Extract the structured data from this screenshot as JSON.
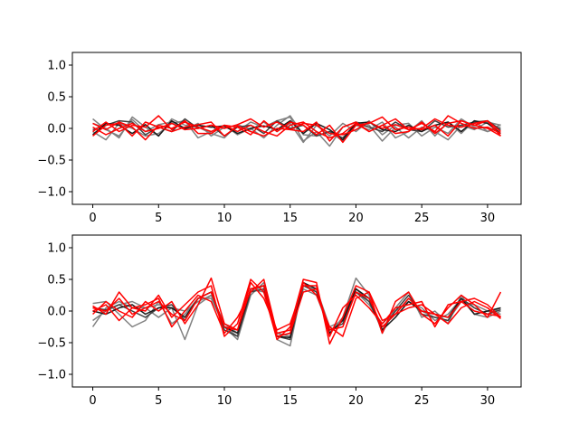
{
  "chart_data": [
    {
      "type": "line",
      "title": "",
      "xlabel": "",
      "ylabel": "",
      "xlim": [
        -1.55,
        32.55
      ],
      "ylim": [
        -1.2,
        1.2
      ],
      "xticks": [
        0,
        5,
        10,
        15,
        20,
        25,
        30
      ],
      "yticks": [
        -1.0,
        -0.5,
        0.0,
        0.5,
        1.0
      ],
      "xtick_labels": [
        "0",
        "5",
        "10",
        "15",
        "20",
        "25",
        "30"
      ],
      "ytick_labels": [
        "−1.0",
        "−0.5",
        "0.0",
        "0.5",
        "1.0"
      ],
      "grid": false,
      "series": [
        {
          "color": "#808080",
          "values": [
            0.15,
            -0.02,
            -0.12,
            0.14,
            -0.05,
            0.06,
            0.1,
            -0.02,
            0.08,
            -0.12,
            0.02,
            -0.05,
            0.1,
            0.02,
            0.12,
            0.18,
            -0.2,
            -0.05,
            -0.28,
            0.02,
            0.1,
            0.05,
            -0.2,
            0.02,
            -0.15,
            0.02,
            -0.05,
            -0.18,
            0.05,
            -0.02,
            0.1,
            0.05
          ]
        },
        {
          "color": "#808080",
          "values": [
            -0.05,
            -0.18,
            0.08,
            0.0,
            -0.12,
            -0.08,
            0.08,
            0.12,
            -0.15,
            -0.05,
            0.05,
            -0.1,
            0.0,
            -0.15,
            0.05,
            0.2,
            -0.1,
            -0.12,
            -0.05,
            -0.2,
            0.05,
            -0.02,
            0.1,
            -0.15,
            -0.05,
            0.12,
            -0.12,
            0.1,
            -0.08,
            0.12,
            -0.05,
            0.02
          ]
        },
        {
          "color": "#808080",
          "values": [
            0.08,
            0.0,
            -0.15,
            0.18,
            0.02,
            -0.12,
            0.15,
            0.05,
            0.02,
            -0.08,
            -0.15,
            0.06,
            -0.02,
            0.1,
            -0.05,
            0.08,
            -0.22,
            0.05,
            -0.12,
            0.08,
            -0.05,
            0.12,
            -0.1,
            0.05,
            0.08,
            -0.12,
            0.02,
            -0.08,
            0.15,
            0.02,
            -0.05,
            0.06
          ]
        },
        {
          "color": "#404040",
          "values": [
            -0.02,
            0.05,
            0.12,
            0.1,
            -0.1,
            0.02,
            -0.05,
            0.15,
            0.0,
            0.05,
            -0.12,
            0.02,
            0.05,
            -0.08,
            0.12,
            0.0,
            0.05,
            -0.12,
            -0.05,
            -0.15,
            0.08,
            0.02,
            -0.05,
            0.1,
            -0.02,
            -0.05,
            0.12,
            0.02,
            0.05,
            0.1,
            0.12,
            -0.02
          ]
        },
        {
          "color": "#1a1a1a",
          "values": [
            -0.1,
            0.08,
            0.05,
            -0.08,
            0.06,
            -0.12,
            0.12,
            0.0,
            0.05,
            0.02,
            0.04,
            -0.08,
            0.0,
            0.04,
            -0.02,
            0.12,
            -0.08,
            0.08,
            -0.02,
            -0.18,
            0.08,
            0.1,
            -0.02,
            -0.05,
            0.05,
            -0.05,
            0.05,
            0.1,
            -0.05,
            0.12,
            0.08,
            -0.08
          ]
        },
        {
          "color": "#ff0000",
          "values": [
            0.08,
            -0.02,
            0.1,
            0.02,
            -0.18,
            0.05,
            0.0,
            0.1,
            0.02,
            -0.05,
            0.05,
            0.02,
            -0.1,
            0.12,
            -0.05,
            0.1,
            0.05,
            -0.1,
            0.05,
            -0.22,
            0.05,
            0.08,
            0.18,
            -0.02,
            0.02,
            -0.02,
            0.05,
            -0.12,
            0.12,
            0.05,
            0.12,
            -0.12
          ]
        },
        {
          "color": "#ff0000",
          "values": [
            -0.12,
            0.05,
            0.08,
            -0.12,
            0.1,
            0.02,
            -0.05,
            0.02,
            0.06,
            0.1,
            -0.12,
            0.04,
            -0.05,
            -0.12,
            0.0,
            -0.02,
            0.08,
            0.05,
            -0.08,
            -0.1,
            -0.02,
            0.1,
            0.0,
            0.06,
            -0.02,
            0.08,
            -0.05,
            0.2,
            0.08,
            0.0,
            0.02,
            -0.08
          ]
        },
        {
          "color": "#ff0000",
          "values": [
            -0.05,
            0.1,
            -0.05,
            0.05,
            0.02,
            0.2,
            -0.02,
            0.12,
            -0.08,
            -0.08,
            0.05,
            -0.05,
            0.05,
            -0.05,
            -0.12,
            0.05,
            0.1,
            -0.05,
            -0.15,
            -0.08,
            0.08,
            -0.05,
            0.05,
            -0.08,
            -0.05,
            0.1,
            -0.08,
            0.08,
            0.12,
            0.05,
            0.0,
            -0.12
          ]
        },
        {
          "color": "#ff0000",
          "values": [
            0.02,
            -0.1,
            0.0,
            0.08,
            -0.05,
            0.0,
            0.08,
            -0.02,
            0.0,
            0.05,
            0.0,
            0.06,
            0.15,
            0.02,
            0.1,
            -0.02,
            -0.05,
            0.1,
            -0.2,
            0.02,
            0.1,
            -0.05,
            0.05,
            0.15,
            -0.02,
            0.0,
            0.15,
            0.05,
            0.02,
            0.08,
            0.12,
            -0.05
          ]
        }
      ]
    },
    {
      "type": "line",
      "title": "",
      "xlabel": "",
      "ylabel": "",
      "xlim": [
        -1.55,
        32.55
      ],
      "ylim": [
        -1.2,
        1.2
      ],
      "xticks": [
        0,
        5,
        10,
        15,
        20,
        25,
        30
      ],
      "yticks": [
        -1.0,
        -0.5,
        0.0,
        0.5,
        1.0
      ],
      "xtick_labels": [
        "0",
        "5",
        "10",
        "15",
        "20",
        "25",
        "30"
      ],
      "ytick_labels": [
        "−1.0",
        "−0.5",
        "0.0",
        "0.5",
        "1.0"
      ],
      "grid": false,
      "series": [
        {
          "color": "#808080",
          "values": [
            -0.25,
            0.05,
            0.15,
            0.05,
            0.05,
            0.1,
            0.05,
            -0.45,
            0.1,
            0.25,
            -0.25,
            -0.4,
            0.3,
            0.4,
            -0.45,
            -0.55,
            0.45,
            0.3,
            -0.35,
            -0.1,
            0.52,
            0.25,
            -0.35,
            0.05,
            0.3,
            -0.1,
            0.0,
            -0.2,
            0.25,
            -0.05,
            -0.1,
            0.0
          ]
        },
        {
          "color": "#808080",
          "values": [
            0.12,
            0.15,
            -0.05,
            -0.25,
            -0.15,
            0.15,
            -0.2,
            -0.05,
            0.2,
            0.2,
            -0.25,
            -0.45,
            0.25,
            0.45,
            -0.4,
            -0.35,
            0.35,
            0.25,
            -0.3,
            -0.2,
            0.3,
            0.1,
            -0.2,
            0.0,
            0.15,
            0.05,
            -0.15,
            -0.05,
            0.2,
            0.05,
            -0.05,
            0.05
          ]
        },
        {
          "color": "#808080",
          "values": [
            -0.15,
            0.0,
            0.1,
            0.15,
            0.05,
            -0.1,
            0.05,
            0.0,
            0.15,
            0.25,
            -0.2,
            -0.35,
            0.35,
            0.3,
            -0.35,
            -0.4,
            0.4,
            0.35,
            -0.25,
            -0.15,
            0.35,
            0.15,
            -0.25,
            -0.05,
            0.2,
            0.0,
            -0.1,
            -0.15,
            0.15,
            0.1,
            0.0,
            -0.05
          ]
        },
        {
          "color": "#404040",
          "values": [
            0.05,
            0.02,
            0.1,
            0.0,
            -0.1,
            0.05,
            0.1,
            -0.15,
            0.2,
            0.3,
            -0.3,
            -0.4,
            0.3,
            0.35,
            -0.4,
            -0.45,
            0.4,
            0.3,
            -0.3,
            -0.2,
            0.3,
            0.15,
            -0.3,
            0.0,
            0.25,
            -0.05,
            -0.1,
            -0.15,
            0.2,
            0.05,
            -0.05,
            0.02
          ]
        },
        {
          "color": "#1a1a1a",
          "values": [
            0.0,
            -0.05,
            0.05,
            0.1,
            -0.05,
            0.05,
            0.05,
            -0.1,
            0.2,
            0.3,
            -0.25,
            -0.35,
            0.35,
            0.4,
            -0.4,
            -0.42,
            0.45,
            0.35,
            -0.35,
            -0.15,
            0.35,
            0.2,
            -0.3,
            -0.1,
            0.15,
            0.0,
            -0.05,
            -0.1,
            0.2,
            -0.05,
            0.0,
            0.05
          ]
        },
        {
          "color": "#ff0000",
          "values": [
            0.08,
            -0.05,
            0.3,
            0.05,
            0.0,
            0.25,
            -0.1,
            0.1,
            0.3,
            0.4,
            -0.4,
            -0.2,
            0.5,
            0.3,
            -0.45,
            -0.25,
            0.5,
            0.45,
            -0.52,
            -0.1,
            0.4,
            0.3,
            -0.35,
            0.15,
            0.3,
            -0.05,
            -0.2,
            0.05,
            0.25,
            0.1,
            -0.1,
            0.3
          ]
        },
        {
          "color": "#ff0000",
          "values": [
            -0.05,
            0.15,
            0.0,
            -0.1,
            0.15,
            0.0,
            0.15,
            -0.2,
            0.1,
            0.52,
            -0.2,
            -0.3,
            0.45,
            0.2,
            -0.3,
            -0.2,
            0.4,
            0.4,
            -0.4,
            0.05,
            0.25,
            0.05,
            -0.2,
            0.05,
            0.1,
            0.15,
            -0.25,
            0.1,
            0.15,
            0.2,
            0.1,
            -0.1
          ]
        },
        {
          "color": "#ff0000",
          "values": [
            0.0,
            0.1,
            -0.15,
            0.05,
            0.1,
            0.2,
            -0.25,
            0.0,
            0.25,
            0.15,
            -0.35,
            -0.1,
            0.3,
            0.5,
            -0.35,
            -0.3,
            0.45,
            0.25,
            -0.25,
            -0.4,
            0.2,
            0.3,
            -0.15,
            -0.05,
            0.05,
            0.1,
            -0.05,
            -0.2,
            0.05,
            0.15,
            0.05,
            -0.12
          ]
        },
        {
          "color": "#ff0000",
          "values": [
            0.05,
            0.0,
            0.2,
            -0.05,
            0.05,
            0.15,
            -0.05,
            -0.15,
            0.2,
            0.3,
            -0.25,
            -0.3,
            0.35,
            0.4,
            -0.4,
            -0.35,
            0.3,
            0.35,
            -0.3,
            -0.25,
            0.3,
            0.2,
            -0.25,
            -0.05,
            0.2,
            0.0,
            -0.05,
            -0.1,
            0.15,
            0.0,
            -0.05,
            -0.08
          ]
        }
      ]
    }
  ]
}
